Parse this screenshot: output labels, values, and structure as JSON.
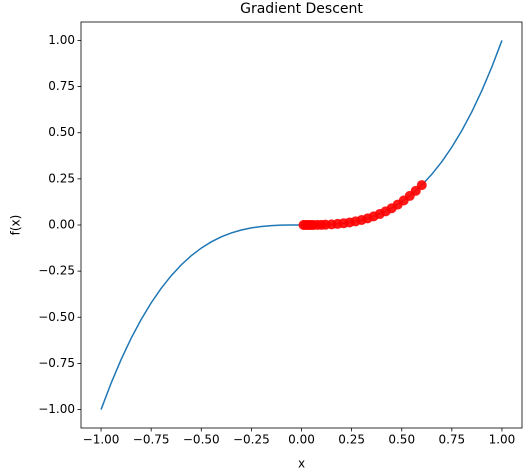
{
  "chart_data": {
    "type": "line",
    "title": "Gradient Descent",
    "x_label": "x",
    "y_label": "f(x)",
    "xlim": [
      -1.1,
      1.1
    ],
    "ylim": [
      -1.1,
      1.1
    ],
    "xticks": [
      {
        "value": -1,
        "label": "−1.00"
      },
      {
        "value": -0.75,
        "label": "−0.75"
      },
      {
        "value": -0.5,
        "label": "−0.50"
      },
      {
        "value": -0.25,
        "label": "−0.25"
      },
      {
        "value": 0,
        "label": "0.00"
      },
      {
        "value": 0.25,
        "label": "0.25"
      },
      {
        "value": 0.5,
        "label": "0.50"
      },
      {
        "value": 0.75,
        "label": "0.75"
      },
      {
        "value": 1,
        "label": "1.00"
      }
    ],
    "yticks": [
      {
        "value": -1,
        "label": "−1.00"
      },
      {
        "value": -0.75,
        "label": "−0.75"
      },
      {
        "value": -0.5,
        "label": "−0.50"
      },
      {
        "value": -0.25,
        "label": "−0.25"
      },
      {
        "value": 0,
        "label": "0.00"
      },
      {
        "value": 0.25,
        "label": "0.25"
      },
      {
        "value": 0.5,
        "label": "0.50"
      },
      {
        "value": 0.75,
        "label": "0.75"
      },
      {
        "value": 1,
        "label": "1.00"
      }
    ],
    "series": [
      {
        "color": "#1f77b4",
        "x": [
          -1,
          -0.95,
          -0.9,
          -0.85,
          -0.8,
          -0.75,
          -0.7,
          -0.65,
          -0.6,
          -0.55,
          -0.5,
          -0.45,
          -0.4,
          -0.35,
          -0.3,
          -0.25,
          -0.2,
          -0.15,
          -0.1,
          -0.05,
          0,
          0.05,
          0.1,
          0.15,
          0.2,
          0.25,
          0.3,
          0.35,
          0.4,
          0.45,
          0.5,
          0.55,
          0.6,
          0.65,
          0.7,
          0.75,
          0.8,
          0.85,
          0.9,
          0.95,
          1
        ],
        "values": [
          -1,
          -0.8574,
          -0.729,
          -0.6141,
          -0.512,
          -0.4219,
          -0.343,
          -0.2746,
          -0.216,
          -0.1664,
          -0.125,
          -0.0911,
          -0.064,
          -0.0429,
          -0.027,
          -0.0156,
          -0.008,
          -0.0034,
          -0.001,
          -0.0001,
          0,
          0.0001,
          0.001,
          0.0034,
          0.008,
          0.0156,
          0.027,
          0.0429,
          0.064,
          0.0911,
          0.125,
          0.1664,
          0.216,
          0.2746,
          0.343,
          0.4219,
          0.512,
          0.6141,
          0.729,
          0.8574,
          1
        ]
      },
      {
        "color": "#ff0000",
        "marker": "circle",
        "line_color": "#808080",
        "x": [
          0.6,
          0.57,
          0.54,
          0.51,
          0.48,
          0.45,
          0.42,
          0.39,
          0.36,
          0.33,
          0.3,
          0.27,
          0.24,
          0.21,
          0.18,
          0.15,
          0.12,
          0.1,
          0.08,
          0.06,
          0.05,
          0.04,
          0.03,
          0.02,
          0.01
        ],
        "values": [
          0.216,
          0.1852,
          0.1575,
          0.1327,
          0.1106,
          0.0911,
          0.0741,
          0.0593,
          0.0467,
          0.0359,
          0.027,
          0.0197,
          0.0138,
          0.0093,
          0.0058,
          0.0034,
          0.0017,
          0.001,
          0.0005,
          0.0002,
          0.0001,
          0.0001,
          0,
          0,
          0
        ]
      }
    ]
  }
}
